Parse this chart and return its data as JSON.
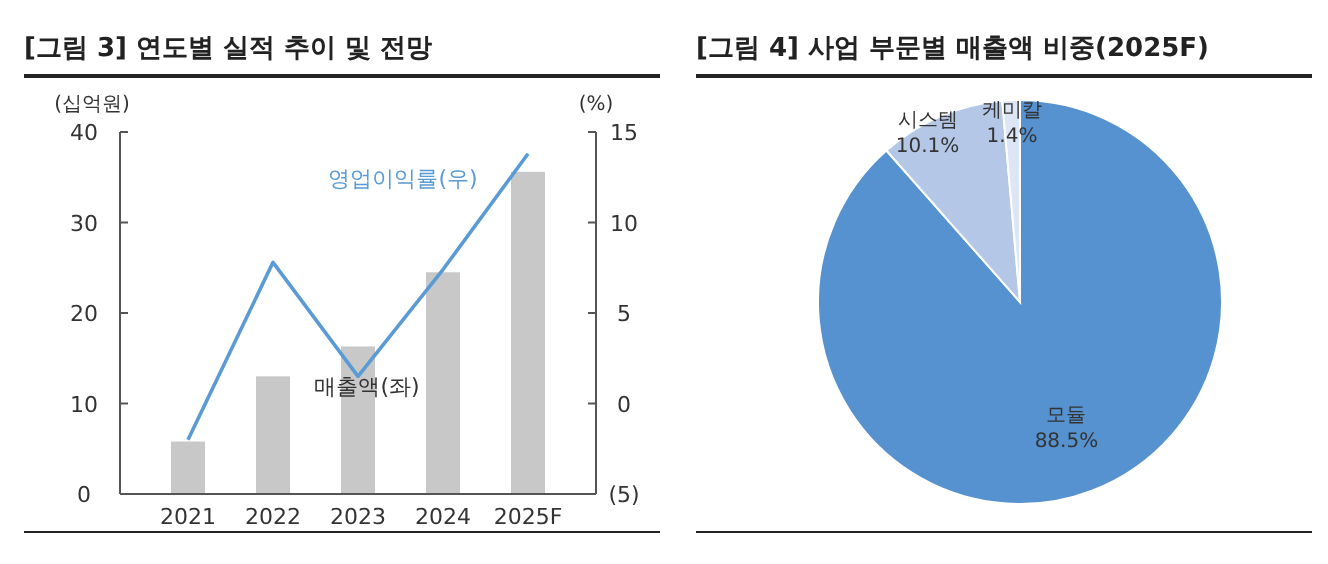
{
  "chart_data": [
    {
      "type": "bar",
      "title": "[그림 3] 연도별 실적 추이 및 전망",
      "ylabel": "(십억원)",
      "y2label": "(%)",
      "categories": [
        "2021",
        "2022",
        "2023",
        "2024",
        "2025F"
      ],
      "series": [
        {
          "name": "매출액(좌)",
          "type": "bar",
          "color": "#c8c8c8",
          "values": [
            5.8,
            13.0,
            16.3,
            24.5,
            35.6
          ]
        },
        {
          "name": "영업이익률(우)",
          "type": "line",
          "axis": "y2",
          "color": "#5b9bd5",
          "values": [
            -2.0,
            7.8,
            1.5,
            7.4,
            13.8
          ]
        }
      ],
      "ylim": [
        0,
        40
      ],
      "yticks": [
        0,
        10,
        20,
        30,
        40
      ],
      "y2lim": [
        -5,
        15
      ],
      "y2ticks": [
        {
          "value": -5,
          "label": "(5)"
        },
        0,
        5,
        10,
        15
      ],
      "grid": false,
      "marker": "none",
      "line_style": "solid"
    },
    {
      "type": "pie",
      "title": "[그림 4] 사업 부문별 매출액 비중(2025F)",
      "categories": [
        "모듈",
        "시스템",
        "케미칼"
      ],
      "values": [
        88.5,
        10.1,
        1.4
      ],
      "colors": [
        "#5592cf",
        "#b4c7e7",
        "#dde6f4"
      ],
      "value_labels": [
        "88.5%",
        "10.1%",
        "1.4%"
      ]
    }
  ]
}
